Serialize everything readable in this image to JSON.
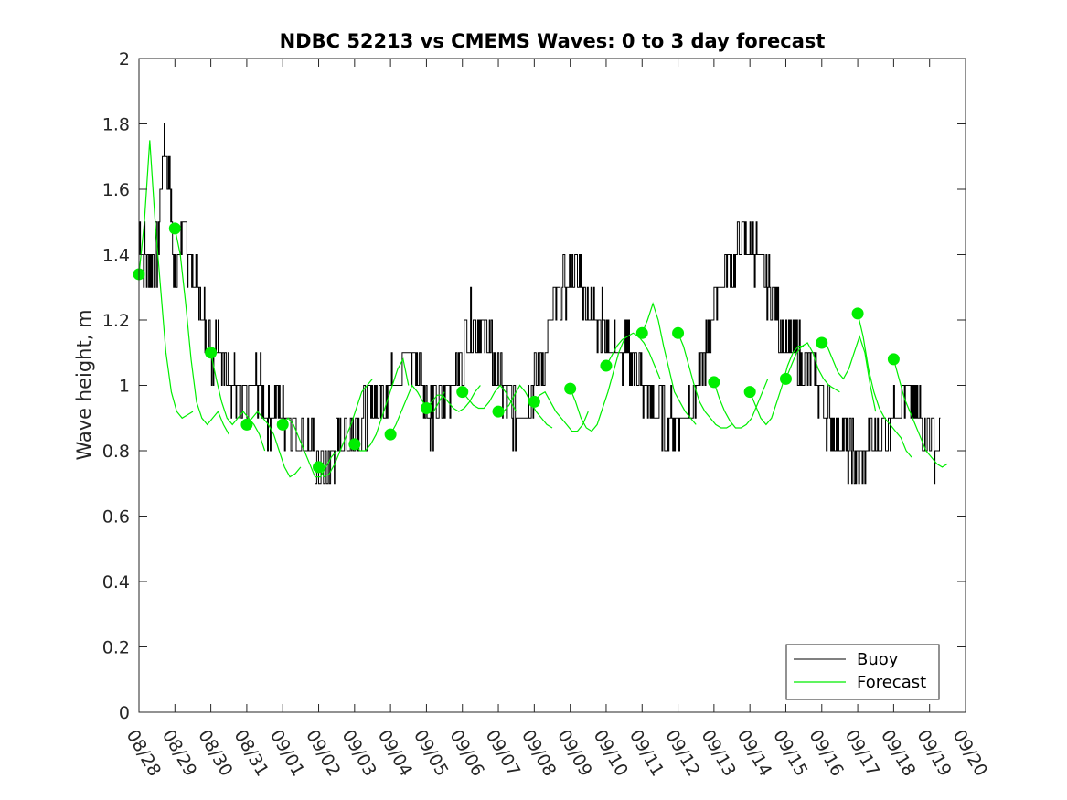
{
  "chart_data": {
    "type": "line",
    "title": "NDBC 52213 vs CMEMS Waves: 0 to 3 day forecast",
    "xlabel": "",
    "ylabel": "Wave height, m",
    "ylim": [
      0,
      2
    ],
    "yticks": [
      0,
      0.2,
      0.4,
      0.6,
      0.8,
      1,
      1.2,
      1.4,
      1.6,
      1.8,
      2
    ],
    "ytick_labels": [
      "0",
      "0.2",
      "0.4",
      "0.6",
      "0.8",
      "1",
      "1.2",
      "1.4",
      "1.6",
      "1.8",
      "2"
    ],
    "xlim_days": [
      0,
      23
    ],
    "xtick_labels": [
      "08/28",
      "08/29",
      "08/30",
      "08/31",
      "09/01",
      "09/02",
      "09/03",
      "09/04",
      "09/05",
      "09/06",
      "09/07",
      "09/08",
      "09/09",
      "09/10",
      "09/11",
      "09/12",
      "09/13",
      "09/14",
      "09/15",
      "09/16",
      "09/17",
      "09/18",
      "09/19",
      "09/20"
    ],
    "legend": {
      "location": "bottom-right",
      "entries": [
        {
          "label": "Buoy",
          "color": "#000000"
        },
        {
          "label": "Forecast",
          "color": "#00ee00"
        }
      ]
    },
    "series": [
      {
        "name": "Buoy",
        "color": "#000000",
        "x_days": [
          0,
          0.25,
          0.5,
          0.7,
          0.9,
          1.0,
          1.2,
          1.4,
          1.6,
          1.8,
          2.0,
          2.2,
          2.4,
          2.6,
          2.8,
          3.0,
          3.3,
          3.6,
          3.9,
          4.2,
          4.5,
          4.8,
          5.0,
          5.2,
          5.4,
          5.6,
          5.8,
          6.0,
          6.3,
          6.6,
          6.9,
          7.2,
          7.5,
          7.8,
          8.0,
          8.2,
          8.5,
          8.8,
          9.0,
          9.3,
          9.6,
          9.8,
          10.0,
          10.2,
          10.5,
          10.8,
          11.0,
          11.3,
          11.6,
          11.9,
          12.2,
          12.5,
          12.8,
          13.0,
          13.3,
          13.6,
          13.9,
          14.0,
          14.3,
          14.6,
          14.9,
          15.2,
          15.5,
          15.8,
          16.0,
          16.3,
          16.6,
          16.9,
          17.2,
          17.5,
          17.8,
          18.0,
          18.3,
          18.6,
          18.9,
          19.2,
          19.5,
          19.8,
          20.0,
          20.3,
          20.6,
          20.9,
          21.2,
          21.5,
          21.8,
          22.0,
          22.3
        ],
        "values": [
          1.45,
          1.35,
          1.4,
          1.75,
          1.55,
          1.3,
          1.5,
          1.4,
          1.3,
          1.2,
          1.1,
          1.15,
          1.05,
          1.0,
          0.95,
          0.95,
          1.0,
          0.9,
          0.95,
          0.88,
          0.85,
          0.8,
          0.75,
          0.72,
          0.8,
          0.85,
          0.85,
          0.85,
          0.9,
          0.95,
          1.0,
          1.05,
          1.1,
          1.05,
          0.95,
          0.9,
          0.95,
          1.05,
          1.1,
          1.2,
          1.15,
          1.1,
          1.05,
          0.95,
          0.9,
          0.95,
          1.0,
          1.1,
          1.25,
          1.3,
          1.35,
          1.25,
          1.2,
          1.15,
          1.1,
          1.1,
          1.05,
          1.0,
          0.95,
          0.9,
          0.88,
          0.9,
          1.0,
          1.1,
          1.25,
          1.35,
          1.4,
          1.45,
          1.4,
          1.3,
          1.2,
          1.1,
          1.1,
          1.05,
          1.0,
          0.9,
          0.85,
          0.8,
          0.78,
          0.8,
          0.85,
          0.9,
          0.95,
          0.95,
          0.9,
          0.85,
          0.8
        ]
      },
      {
        "name": "Forecast",
        "color": "#00ee00",
        "markers": [
          {
            "x_day": 0,
            "value": 1.34
          },
          {
            "x_day": 1,
            "value": 1.48
          },
          {
            "x_day": 2,
            "value": 1.1
          },
          {
            "x_day": 3,
            "value": 0.88
          },
          {
            "x_day": 4,
            "value": 0.88
          },
          {
            "x_day": 5,
            "value": 0.75
          },
          {
            "x_day": 6,
            "value": 0.82
          },
          {
            "x_day": 7,
            "value": 0.85
          },
          {
            "x_day": 8,
            "value": 0.93
          },
          {
            "x_day": 9,
            "value": 0.98
          },
          {
            "x_day": 10,
            "value": 0.92
          },
          {
            "x_day": 11,
            "value": 0.95
          },
          {
            "x_day": 12,
            "value": 0.99
          },
          {
            "x_day": 13,
            "value": 1.06
          },
          {
            "x_day": 14,
            "value": 1.16
          },
          {
            "x_day": 15,
            "value": 1.16
          },
          {
            "x_day": 16,
            "value": 1.01
          },
          {
            "x_day": 17,
            "value": 0.98
          },
          {
            "x_day": 18,
            "value": 1.02
          },
          {
            "x_day": 19,
            "value": 1.13
          },
          {
            "x_day": 20,
            "value": 1.22
          },
          {
            "x_day": 21,
            "value": 1.08
          }
        ],
        "runs": [
          [
            1.34,
            1.5,
            1.75,
            1.5,
            1.3,
            1.1,
            0.98,
            0.92,
            0.9,
            0.91,
            0.92
          ],
          [
            1.48,
            1.4,
            1.25,
            1.08,
            0.95,
            0.9,
            0.88,
            0.9,
            0.92,
            0.88,
            0.85
          ],
          [
            1.1,
            1.02,
            0.95,
            0.9,
            0.88,
            0.9,
            0.92,
            0.9,
            0.88,
            0.85,
            0.8
          ],
          [
            0.88,
            0.9,
            0.92,
            0.9,
            0.88,
            0.85,
            0.8,
            0.75,
            0.72,
            0.73,
            0.75
          ],
          [
            0.88,
            0.9,
            0.88,
            0.84,
            0.8,
            0.76,
            0.72,
            0.72,
            0.75,
            0.78,
            0.8
          ],
          [
            0.75,
            0.72,
            0.73,
            0.76,
            0.8,
            0.84,
            0.88,
            0.93,
            0.98,
            1.0,
            1.02
          ],
          [
            0.82,
            0.8,
            0.8,
            0.82,
            0.85,
            0.9,
            0.95,
            1.0,
            1.05,
            1.08,
            1.0
          ],
          [
            0.85,
            0.88,
            0.92,
            0.96,
            1.0,
            0.98,
            0.95,
            0.93,
            0.92,
            0.95,
            0.98
          ],
          [
            0.93,
            0.95,
            0.97,
            0.97,
            0.95,
            0.93,
            0.92,
            0.93,
            0.95,
            0.98,
            1.0
          ],
          [
            0.98,
            0.96,
            0.94,
            0.93,
            0.93,
            0.95,
            0.98,
            1.0,
            0.98,
            0.95,
            0.92
          ],
          [
            0.92,
            0.92,
            0.94,
            0.97,
            1.0,
            0.98,
            0.95,
            0.92,
            0.9,
            0.88,
            0.87
          ],
          [
            0.95,
            0.97,
            0.98,
            0.95,
            0.92,
            0.9,
            0.88,
            0.86,
            0.86,
            0.88,
            0.92
          ],
          [
            0.99,
            0.95,
            0.9,
            0.87,
            0.86,
            0.88,
            0.93,
            0.98,
            1.04,
            1.1,
            1.14
          ],
          [
            1.06,
            1.09,
            1.12,
            1.14,
            1.15,
            1.16,
            1.15,
            1.13,
            1.1,
            1.06,
            1.02
          ],
          [
            1.16,
            1.2,
            1.25,
            1.2,
            1.12,
            1.05,
            0.98,
            0.95,
            0.92,
            0.9,
            0.88
          ],
          [
            1.16,
            1.12,
            1.06,
            1.0,
            0.95,
            0.92,
            0.9,
            0.88,
            0.87,
            0.87,
            0.88
          ],
          [
            1.01,
            0.96,
            0.92,
            0.89,
            0.87,
            0.87,
            0.88,
            0.9,
            0.94,
            0.98,
            1.02
          ],
          [
            0.98,
            0.94,
            0.9,
            0.88,
            0.9,
            0.95,
            1.0,
            1.06,
            1.1,
            1.12,
            1.12
          ],
          [
            1.02,
            1.06,
            1.1,
            1.12,
            1.13,
            1.1,
            1.05,
            1.02,
            1.0,
            0.99,
            0.98
          ],
          [
            1.13,
            1.12,
            1.08,
            1.04,
            1.02,
            1.05,
            1.1,
            1.15,
            1.1,
            1.0,
            0.92
          ],
          [
            1.22,
            1.15,
            1.05,
            0.98,
            0.93,
            0.9,
            0.88,
            0.86,
            0.84,
            0.8,
            0.78
          ],
          [
            1.08,
            1.02,
            0.96,
            0.92,
            0.88,
            0.84,
            0.8,
            0.78,
            0.76,
            0.75,
            0.76
          ]
        ],
        "run_span_days": 1.5
      }
    ]
  }
}
